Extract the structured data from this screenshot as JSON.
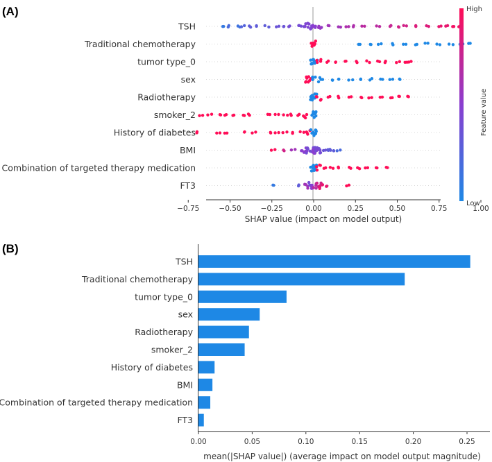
{
  "chart_data": [
    {
      "panel_label": "(A)",
      "type": "scatter",
      "subtype": "shap-beeswarm",
      "features": [
        "TSH",
        "Traditional chemotherapy",
        "tumor type_0",
        "sex",
        "Radiotherapy",
        "smoker_2",
        "History of diabetes",
        "BMI",
        "Combination of targeted therapy medication",
        "FT3"
      ],
      "xlabel": "SHAP value (impact on model output)",
      "xlim": [
        -0.83,
        1.03
      ],
      "xticks": [
        -0.75,
        -0.5,
        -0.25,
        0.0,
        0.25,
        0.5,
        0.75,
        1.0
      ],
      "xtick_labels": [
        "−0.75",
        "−0.50",
        "−0.25",
        "0.00",
        "0.25",
        "0.50",
        "0.75",
        "1.00"
      ],
      "colorbar": {
        "title": "Feature value",
        "high_label": "High",
        "low_label": "Low",
        "low_color": "#1e88e5",
        "high_color": "#ff0d57"
      },
      "series": [
        {
          "name": "TSH",
          "points": [
            [
              -0.55,
              0.1
            ],
            [
              -0.5,
              0.2
            ],
            [
              -0.45,
              0.15
            ],
            [
              -0.42,
              0.25
            ],
            [
              -0.38,
              0.3
            ],
            [
              -0.33,
              0.3
            ],
            [
              -0.28,
              0.3
            ],
            [
              -0.22,
              0.35
            ],
            [
              -0.18,
              0.35
            ],
            [
              -0.14,
              0.4
            ],
            [
              -0.1,
              0.4
            ],
            [
              -0.07,
              0.4
            ],
            [
              -0.04,
              0.45
            ],
            [
              -0.02,
              0.45
            ],
            [
              0.0,
              0.5
            ],
            [
              0.04,
              0.55
            ],
            [
              0.08,
              0.6
            ],
            [
              0.15,
              0.6
            ],
            [
              0.2,
              0.65
            ],
            [
              0.25,
              0.65
            ],
            [
              0.3,
              0.7
            ],
            [
              0.38,
              0.7
            ],
            [
              0.45,
              0.75
            ],
            [
              0.5,
              0.8
            ],
            [
              0.55,
              0.8
            ],
            [
              0.62,
              0.85
            ],
            [
              0.68,
              0.85
            ],
            [
              0.76,
              0.9
            ],
            [
              0.8,
              0.9
            ],
            [
              0.84,
              0.95
            ],
            [
              0.88,
              0.95
            ]
          ]
        },
        {
          "name": "Traditional chemotherapy",
          "points": [
            [
              0.0,
              1.0
            ],
            [
              0.0,
              1.0
            ],
            [
              0.0,
              1.0
            ],
            [
              0.28,
              0.0
            ],
            [
              0.33,
              0.0
            ],
            [
              0.4,
              0.0
            ],
            [
              0.48,
              0.0
            ],
            [
              0.55,
              0.0
            ],
            [
              0.62,
              0.0
            ],
            [
              0.68,
              0.0
            ],
            [
              0.75,
              0.0
            ],
            [
              0.82,
              0.0
            ],
            [
              0.88,
              0.0
            ],
            [
              0.94,
              0.0
            ]
          ]
        },
        {
          "name": "tumor type_0",
          "points": [
            [
              -0.01,
              0.0
            ],
            [
              0.0,
              0.0
            ],
            [
              0.01,
              0.0
            ],
            [
              0.03,
              1.0
            ],
            [
              0.08,
              1.0
            ],
            [
              0.14,
              1.0
            ],
            [
              0.2,
              1.0
            ],
            [
              0.26,
              1.0
            ],
            [
              0.32,
              1.0
            ],
            [
              0.38,
              1.0
            ],
            [
              0.44,
              1.0
            ],
            [
              0.5,
              1.0
            ],
            [
              0.55,
              1.0
            ],
            [
              0.58,
              1.0
            ]
          ]
        },
        {
          "name": "sex",
          "points": [
            [
              -0.04,
              1.0
            ],
            [
              -0.02,
              1.0
            ],
            [
              0.0,
              0.0
            ],
            [
              0.04,
              0.0
            ],
            [
              0.1,
              0.0
            ],
            [
              0.16,
              0.0
            ],
            [
              0.22,
              0.0
            ],
            [
              0.28,
              0.0
            ],
            [
              0.34,
              0.0
            ],
            [
              0.4,
              0.0
            ],
            [
              0.46,
              0.0
            ],
            [
              0.51,
              0.0
            ]
          ]
        },
        {
          "name": "Radiotherapy",
          "points": [
            [
              -0.01,
              0.0
            ],
            [
              0.0,
              0.0
            ],
            [
              0.01,
              0.0
            ],
            [
              0.03,
              1.0
            ],
            [
              0.1,
              1.0
            ],
            [
              0.16,
              1.0
            ],
            [
              0.22,
              1.0
            ],
            [
              0.28,
              1.0
            ],
            [
              0.34,
              1.0
            ],
            [
              0.4,
              1.0
            ],
            [
              0.46,
              1.0
            ],
            [
              0.52,
              1.0
            ],
            [
              0.57,
              1.0
            ]
          ]
        },
        {
          "name": "smoker_2",
          "points": [
            [
              -0.67,
              1.0
            ],
            [
              -0.62,
              1.0
            ],
            [
              -0.57,
              1.0
            ],
            [
              -0.52,
              1.0
            ],
            [
              -0.47,
              1.0
            ],
            [
              -0.42,
              1.0
            ],
            [
              -0.38,
              1.0
            ],
            [
              -0.26,
              1.0
            ],
            [
              -0.22,
              1.0
            ],
            [
              -0.17,
              1.0
            ],
            [
              -0.13,
              1.0
            ],
            [
              -0.1,
              1.0
            ],
            [
              -0.05,
              1.0
            ],
            [
              -0.01,
              0.0
            ],
            [
              0.0,
              0.0
            ],
            [
              0.01,
              0.0
            ]
          ]
        },
        {
          "name": "History of diabetes",
          "points": [
            [
              -0.71,
              1.0
            ],
            [
              -0.57,
              1.0
            ],
            [
              -0.53,
              1.0
            ],
            [
              -0.4,
              1.0
            ],
            [
              -0.36,
              1.0
            ],
            [
              -0.26,
              1.0
            ],
            [
              -0.22,
              1.0
            ],
            [
              -0.17,
              1.0
            ],
            [
              -0.12,
              1.0
            ],
            [
              -0.07,
              1.0
            ],
            [
              -0.03,
              1.0
            ],
            [
              -0.01,
              0.0
            ],
            [
              0.0,
              0.0
            ],
            [
              0.01,
              0.0
            ]
          ]
        },
        {
          "name": "BMI",
          "points": [
            [
              -0.24,
              1.0
            ],
            [
              -0.18,
              0.8
            ],
            [
              -0.12,
              0.6
            ],
            [
              -0.08,
              0.5
            ],
            [
              -0.05,
              0.5
            ],
            [
              -0.03,
              0.4
            ],
            [
              -0.01,
              0.4
            ],
            [
              0.0,
              0.5
            ],
            [
              0.01,
              0.5
            ],
            [
              0.02,
              0.4
            ],
            [
              0.04,
              0.4
            ],
            [
              0.06,
              0.35
            ],
            [
              0.08,
              0.3
            ],
            [
              0.1,
              0.3
            ],
            [
              0.12,
              0.3
            ],
            [
              0.15,
              0.2
            ]
          ]
        },
        {
          "name": "Combination of targeted therapy medication",
          "points": [
            [
              -0.01,
              0.0
            ],
            [
              0.0,
              0.0
            ],
            [
              0.01,
              0.0
            ],
            [
              0.03,
              1.0
            ],
            [
              0.07,
              1.0
            ],
            [
              0.11,
              1.0
            ],
            [
              0.15,
              1.0
            ],
            [
              0.21,
              1.0
            ],
            [
              0.27,
              1.0
            ],
            [
              0.32,
              1.0
            ],
            [
              0.38,
              1.0
            ],
            [
              0.43,
              1.0
            ]
          ]
        },
        {
          "name": "FT3",
          "points": [
            [
              -0.24,
              0.1
            ],
            [
              -0.08,
              0.3
            ],
            [
              -0.04,
              0.6
            ],
            [
              -0.02,
              0.4
            ],
            [
              0.0,
              0.5
            ],
            [
              0.01,
              0.7
            ],
            [
              0.03,
              0.8
            ],
            [
              0.05,
              0.9
            ],
            [
              0.08,
              0.9
            ],
            [
              0.21,
              1.0
            ]
          ]
        }
      ]
    },
    {
      "panel_label": "(B)",
      "type": "bar",
      "orientation": "horizontal",
      "categories": [
        "TSH",
        "Traditional chemotherapy",
        "tumor type_0",
        "sex",
        "Radiotherapy",
        "smoker_2",
        "History of diabetes",
        "BMI",
        "Combination of targeted therapy medication",
        "FT3"
      ],
      "values": [
        0.253,
        0.192,
        0.082,
        0.057,
        0.047,
        0.043,
        0.015,
        0.013,
        0.011,
        0.005
      ],
      "xlabel": "mean(|SHAP value|) (average impact on model output magnitude)",
      "xlim": [
        0,
        0.27
      ],
      "xticks": [
        0.0,
        0.05,
        0.1,
        0.15,
        0.2,
        0.25
      ],
      "xtick_labels": [
        "0.00",
        "0.05",
        "0.10",
        "0.15",
        "0.20",
        "0.25"
      ],
      "bar_color": "#1e88e5"
    }
  ]
}
